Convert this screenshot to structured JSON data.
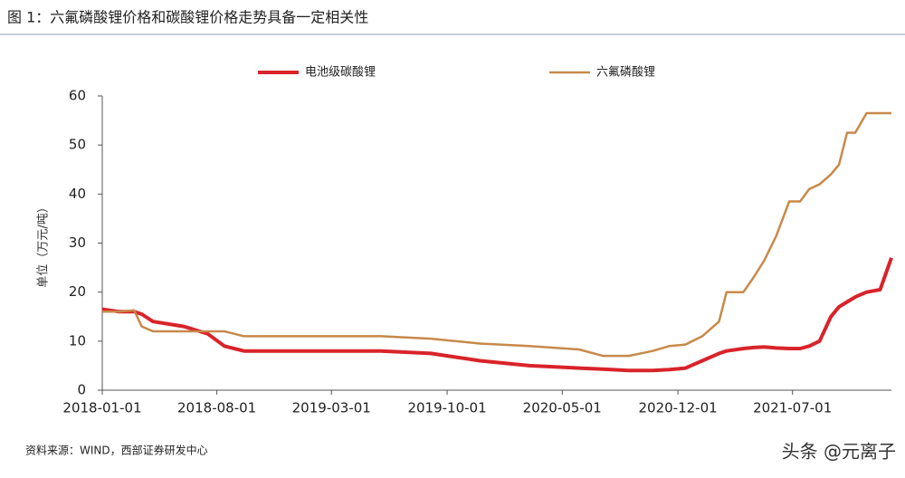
{
  "title": "图 1：六氟磷酸锂价格和碳酸锂价格走势具备一定相关性",
  "chart_data": {
    "type": "line",
    "y_label": "单位（万元/吨）",
    "x": [
      "2018-01-01",
      "2018-02-01",
      "2018-03-01",
      "2018-03-15",
      "2018-04-05",
      "2018-06-01",
      "2018-07-15",
      "2018-08-15",
      "2018-09-20",
      "2019-01-01",
      "2019-06-01",
      "2019-09-01",
      "2019-12-01",
      "2020-03-01",
      "2020-06-01",
      "2020-07-15",
      "2020-09-01",
      "2020-10-15",
      "2020-11-15",
      "2020-12-15",
      "2021-01-15",
      "2021-02-15",
      "2021-03-01",
      "2021-04-01",
      "2021-04-20",
      "2021-05-10",
      "2021-06-01",
      "2021-06-25",
      "2021-07-15",
      "2021-08-01",
      "2021-08-20",
      "2021-09-10",
      "2021-09-25",
      "2021-10-10",
      "2021-10-25",
      "2021-11-15",
      "2021-12-10",
      "2021-12-31"
    ],
    "series": [
      {
        "name": "电池级碳酸锂",
        "color": "#d9232a",
        "values": [
          16.5,
          16,
          16,
          15.5,
          14,
          13,
          11.5,
          9,
          8,
          8,
          8,
          7.5,
          6,
          5,
          4.5,
          4.3,
          4,
          4,
          4.2,
          4.5,
          6,
          7.5,
          8,
          8.5,
          8.7,
          8.8,
          8.6,
          8.5,
          8.5,
          9,
          10,
          15,
          17,
          18,
          19,
          20,
          20.5,
          27
        ]
      },
      {
        "name": "六氟磷酸锂",
        "color": "#c8894a",
        "values": [
          16,
          16,
          16.3,
          13,
          12,
          12,
          12,
          12,
          11,
          11,
          11,
          10.5,
          9.5,
          9,
          8.3,
          7,
          7,
          8,
          9,
          9.3,
          11,
          14,
          20,
          20,
          23,
          26.5,
          31.5,
          38.5,
          38.5,
          41,
          42,
          44,
          46,
          52.5,
          52.5,
          56.5,
          56.5,
          56.5
        ]
      }
    ],
    "xlim": [
      "2018-01-01",
      "2021-12-31"
    ],
    "xticks": [
      "2018-01-01",
      "2018-08-01",
      "2019-03-01",
      "2019-10-01",
      "2020-05-01",
      "2020-12-01",
      "2021-07-01"
    ],
    "ylim": [
      0,
      60
    ],
    "yticks": [
      0,
      10,
      20,
      30,
      40,
      50,
      60
    ]
  },
  "source": "资料来源：WIND，西部证券研发中心",
  "watermark": "头条 @元离子"
}
